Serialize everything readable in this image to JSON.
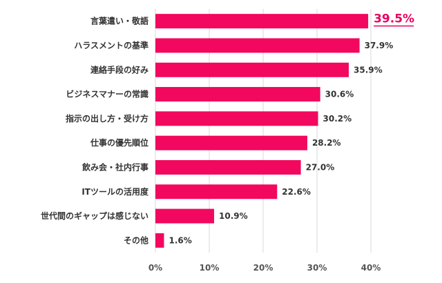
{
  "chart_data": {
    "type": "bar",
    "orientation": "horizontal",
    "categories": [
      "言葉遣い・敬語",
      "ハラスメントの基準",
      "連絡手段の好み",
      "ビジネスマナーの常識",
      "指示の出し方・受け方",
      "仕事の優先順位",
      "飲み会・社内行事",
      "ITツールの活用度",
      "世代間のギャップは感じない",
      "その他"
    ],
    "values": [
      39.5,
      37.9,
      35.9,
      30.6,
      30.2,
      28.2,
      27.0,
      22.6,
      10.9,
      1.6
    ],
    "value_labels": [
      "39.5%",
      "37.9%",
      "35.9%",
      "30.6%",
      "30.2%",
      "28.2%",
      "27.0%",
      "22.6%",
      "10.9%",
      "1.6%"
    ],
    "highlight_index": 0,
    "xlim": [
      0,
      40
    ],
    "x_ticks": [
      "0%",
      "10%",
      "20%",
      "30%",
      "40%"
    ],
    "grid": true,
    "colors": {
      "bar": "#f2085e",
      "highlight_label": "#e8005f"
    }
  }
}
